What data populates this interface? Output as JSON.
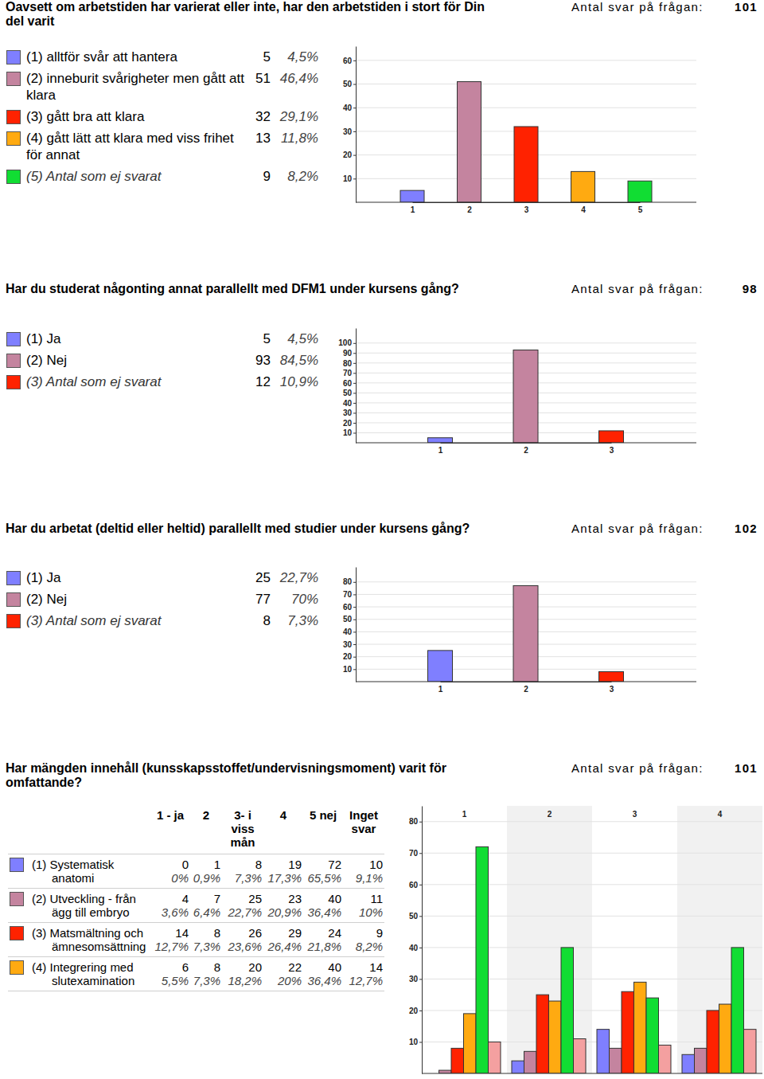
{
  "chart_data": [
    {
      "type": "bar",
      "title": "Oavsett om arbetstiden har varierat eller inte, har den arbetstiden i stort för Din del varit",
      "response_count_label": "Antal svar på frågan:",
      "response_count": 101,
      "categories": [
        "1",
        "2",
        "3",
        "4",
        "5"
      ],
      "legend_labels": [
        "(1) alltför svår att hantera",
        "(2) inneburit svårigheter men gått att klara",
        "(3) gått bra att klara",
        "(4) gått lätt att klara med viss frihet för annat",
        "(5) Antal som ej svarat"
      ],
      "values": [
        5,
        51,
        32,
        13,
        9
      ],
      "percent_values": [
        4.5,
        46.4,
        29.1,
        11.8,
        8.2
      ],
      "percent_labels": [
        "4,5%",
        "46,4%",
        "29,1%",
        "11,8%",
        "8,2%"
      ],
      "colors": [
        "#7f7fff",
        "#c4849f",
        "#ff2200",
        "#ffaa11",
        "#11dd33"
      ],
      "ylim": [
        0,
        66
      ],
      "yticks": [
        10,
        20,
        30,
        40,
        50,
        60
      ],
      "grid": true
    },
    {
      "type": "bar",
      "title": "Har du studerat någonting annat parallellt med DFM1 under kursens gång?",
      "response_count_label": "Antal svar på frågan:",
      "response_count": 98,
      "categories": [
        "1",
        "2",
        "3"
      ],
      "legend_labels": [
        "(1) Ja",
        "(2) Nej",
        "(3) Antal som ej svarat"
      ],
      "values": [
        5,
        93,
        12
      ],
      "percent_values": [
        4.5,
        84.5,
        10.9
      ],
      "percent_labels": [
        "4,5%",
        "84,5%",
        "10,9%"
      ],
      "colors": [
        "#7f7fff",
        "#c4849f",
        "#ff2200"
      ],
      "ylim": [
        0,
        115
      ],
      "yticks": [
        10,
        20,
        30,
        40,
        50,
        60,
        70,
        80,
        90,
        100
      ],
      "grid": true
    },
    {
      "type": "bar",
      "title": "Har du arbetat (deltid eller heltid) parallellt med studier under kursens gång?",
      "response_count_label": "Antal svar på frågan:",
      "response_count": 102,
      "categories": [
        "1",
        "2",
        "3"
      ],
      "legend_labels": [
        "(1) Ja",
        "(2) Nej",
        "(3) Antal som ej svarat"
      ],
      "values": [
        25,
        77,
        8
      ],
      "percent_values": [
        22.7,
        70,
        7.3
      ],
      "percent_labels": [
        "22,7%",
        "70%",
        "7,3%"
      ],
      "colors": [
        "#7f7fff",
        "#c4849f",
        "#ff2200"
      ],
      "ylim": [
        0,
        92
      ],
      "yticks": [
        10,
        20,
        30,
        40,
        50,
        60,
        70,
        80
      ],
      "grid": true
    },
    {
      "type": "bar",
      "title": "Har mängden innehåll (kunsskapsstoffet/undervisningsmoment) varit för omfattande?",
      "response_count_label": "Antal svar på frågan:",
      "response_count": 101,
      "categories": [
        "1",
        "2",
        "3",
        "4"
      ],
      "row_labels": [
        "(1) Systematisk anatomi",
        "(2) Utveckling - från ägg till embryo",
        "(3) Matsmältning och ämnesomsättning",
        "(4) Integrering med slutexamination"
      ],
      "row_colors": [
        "#7f7fff",
        "#c4849f",
        "#ff2200",
        "#ffaa11"
      ],
      "series": [
        {
          "name": "1 - ja",
          "color": "#7f7fff",
          "values": [
            0,
            4,
            14,
            6
          ],
          "percent_values": [
            0,
            3.6,
            12.7,
            5.5
          ],
          "percent_labels": [
            "0%",
            "3,6%",
            "12,7%",
            "5,5%"
          ]
        },
        {
          "name": "2",
          "color": "#c4849f",
          "values": [
            1,
            7,
            8,
            8
          ],
          "percent_values": [
            0.9,
            6.4,
            7.3,
            7.3
          ],
          "percent_labels": [
            "0,9%",
            "6,4%",
            "7,3%",
            "7,3%"
          ]
        },
        {
          "name": "3- i viss mån",
          "color": "#ff2200",
          "values": [
            8,
            25,
            26,
            20
          ],
          "percent_values": [
            7.3,
            22.7,
            23.6,
            18.2
          ],
          "percent_labels": [
            "7,3%",
            "22,7%",
            "23,6%",
            "18,2%"
          ]
        },
        {
          "name": "4",
          "color": "#ffaa11",
          "values": [
            19,
            23,
            29,
            22
          ],
          "percent_values": [
            17.3,
            20.9,
            26.4,
            20
          ],
          "percent_labels": [
            "17,3%",
            "20,9%",
            "26,4%",
            "20%"
          ]
        },
        {
          "name": "5 nej",
          "color": "#11dd33",
          "values": [
            72,
            40,
            24,
            40
          ],
          "percent_values": [
            65.5,
            36.4,
            21.8,
            36.4
          ],
          "percent_labels": [
            "65,5%",
            "36,4%",
            "21,8%",
            "36,4%"
          ]
        },
        {
          "name": "Inget svar",
          "color": "#f4a0a0",
          "values": [
            10,
            11,
            9,
            14
          ],
          "percent_values": [
            9.1,
            10,
            8.2,
            12.7
          ],
          "percent_labels": [
            "9,1%",
            "10%",
            "8,2%",
            "12,7%"
          ]
        }
      ],
      "ylim": [
        0,
        85
      ],
      "yticks": [
        10,
        20,
        30,
        40,
        50,
        60,
        70,
        80
      ],
      "grid": true
    }
  ]
}
